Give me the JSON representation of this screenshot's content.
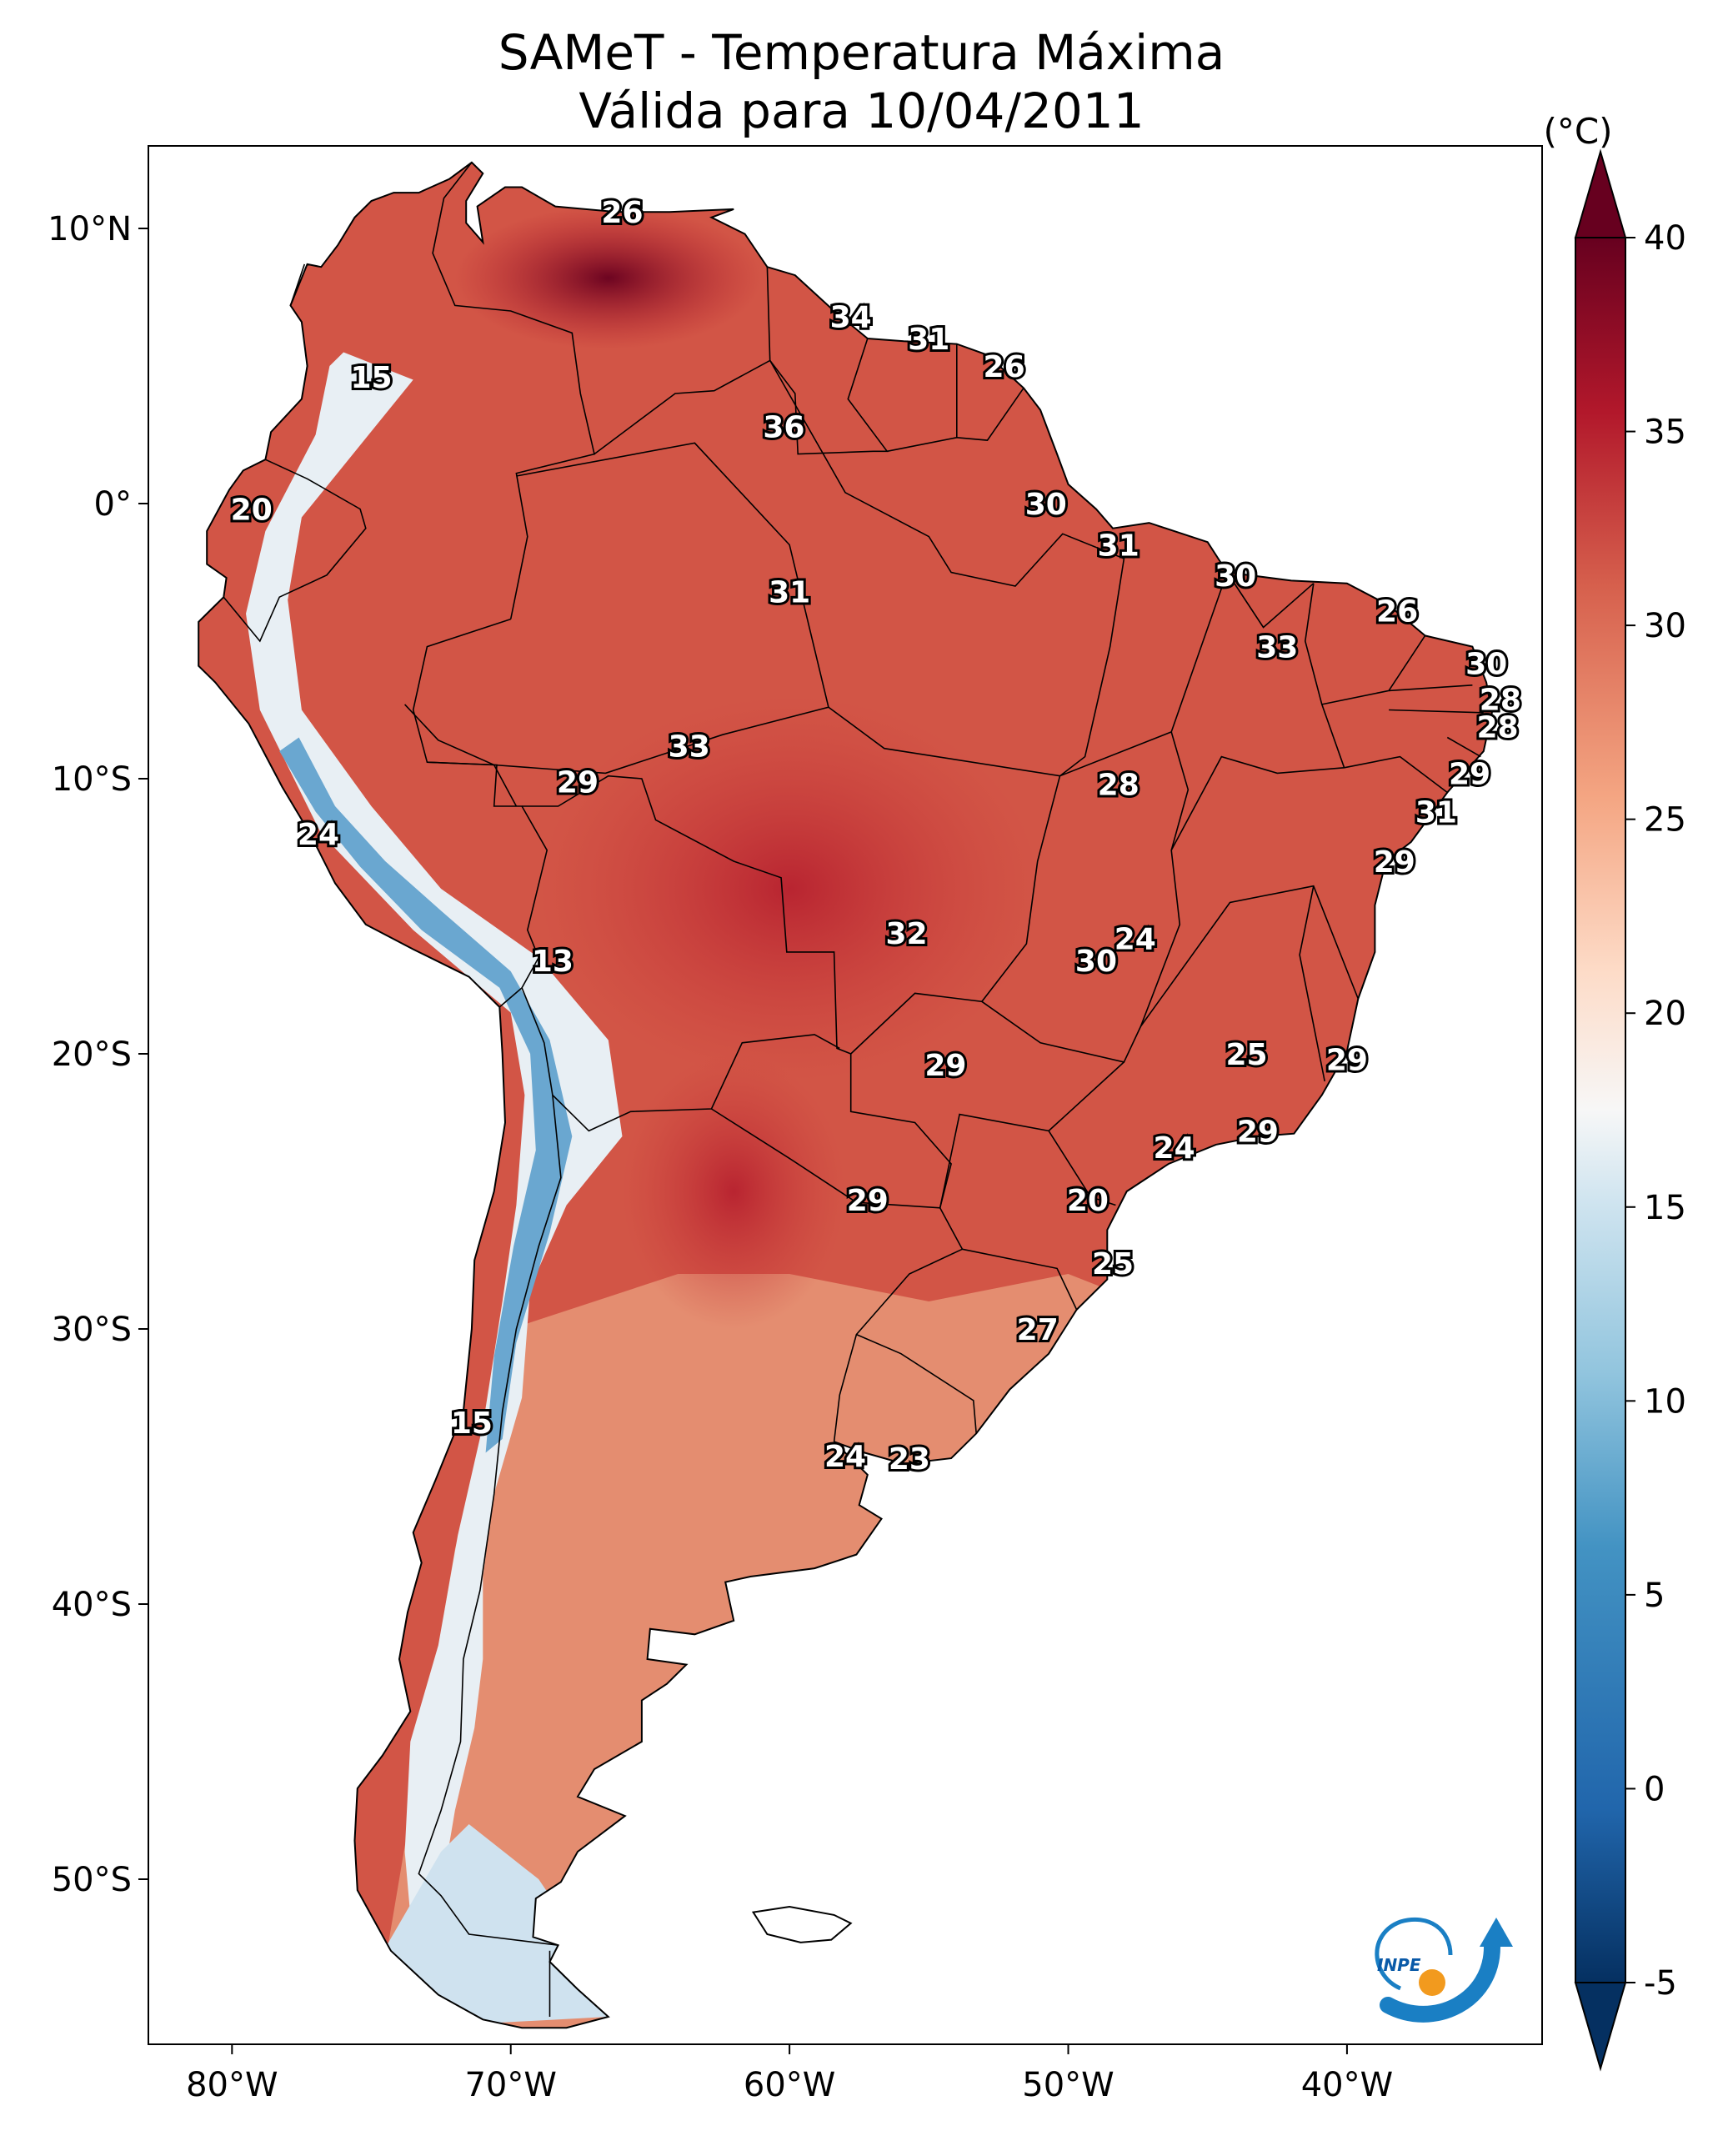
{
  "title": {
    "line1": "SAMeT - Temperatura Máxima",
    "line2": "Válida para 10/04/2011"
  },
  "axes": {
    "lat_ticks": [
      {
        "label": "10°N",
        "lat": 10
      },
      {
        "label": "0°",
        "lat": 0
      },
      {
        "label": "10°S",
        "lat": -10
      },
      {
        "label": "20°S",
        "lat": -20
      },
      {
        "label": "30°S",
        "lat": -30
      },
      {
        "label": "40°S",
        "lat": -40
      },
      {
        "label": "50°S",
        "lat": -50
      }
    ],
    "lon_ticks": [
      {
        "label": "80°W",
        "lon": -80
      },
      {
        "label": "70°W",
        "lon": -70
      },
      {
        "label": "60°W",
        "lon": -60
      },
      {
        "label": "50°W",
        "lon": -50
      },
      {
        "label": "40°W",
        "lon": -40
      }
    ],
    "lon_range": [
      -83,
      -33
    ],
    "lat_range": [
      -56,
      13
    ]
  },
  "colorbar": {
    "unit": "(°C)",
    "min": -5,
    "max": 40,
    "ticks": [
      "-5",
      "0",
      "5",
      "10",
      "15",
      "20",
      "25",
      "30",
      "35",
      "40"
    ],
    "colors": [
      "#053061",
      "#2166ac",
      "#4393c3",
      "#92c5de",
      "#d1e5f0",
      "#f7f7f7",
      "#fddbc7",
      "#f4a582",
      "#d6604d",
      "#b2182b",
      "#67001f"
    ]
  },
  "labels": [
    {
      "text": "26",
      "lon": -66.0,
      "lat": 10.6
    },
    {
      "text": "34",
      "lon": -57.8,
      "lat": 6.8
    },
    {
      "text": "31",
      "lon": -55.0,
      "lat": 6.0
    },
    {
      "text": "26",
      "lon": -52.3,
      "lat": 5.0
    },
    {
      "text": "15",
      "lon": -75.0,
      "lat": 4.6
    },
    {
      "text": "36",
      "lon": -60.2,
      "lat": 2.8
    },
    {
      "text": "20",
      "lon": -79.3,
      "lat": -0.2
    },
    {
      "text": "30",
      "lon": -50.8,
      "lat": 0.0
    },
    {
      "text": "31",
      "lon": -48.2,
      "lat": -1.5
    },
    {
      "text": "31",
      "lon": -60.0,
      "lat": -3.2
    },
    {
      "text": "30",
      "lon": -44.0,
      "lat": -2.6
    },
    {
      "text": "26",
      "lon": -38.2,
      "lat": -3.9
    },
    {
      "text": "33",
      "lon": -42.5,
      "lat": -5.2
    },
    {
      "text": "30",
      "lon": -35.0,
      "lat": -5.8
    },
    {
      "text": "28",
      "lon": -34.5,
      "lat": -7.1
    },
    {
      "text": "28",
      "lon": -34.6,
      "lat": -8.1
    },
    {
      "text": "33",
      "lon": -63.6,
      "lat": -8.8
    },
    {
      "text": "29",
      "lon": -67.6,
      "lat": -10.1
    },
    {
      "text": "28",
      "lon": -48.2,
      "lat": -10.2
    },
    {
      "text": "29",
      "lon": -35.6,
      "lat": -9.8
    },
    {
      "text": "31",
      "lon": -36.8,
      "lat": -11.2
    },
    {
      "text": "24",
      "lon": -76.9,
      "lat": -12.0
    },
    {
      "text": "29",
      "lon": -38.3,
      "lat": -13.0
    },
    {
      "text": "32",
      "lon": -55.8,
      "lat": -15.6
    },
    {
      "text": "24",
      "lon": -47.6,
      "lat": -15.8
    },
    {
      "text": "30",
      "lon": -49.0,
      "lat": -16.6
    },
    {
      "text": "13",
      "lon": -68.5,
      "lat": -16.6
    },
    {
      "text": "25",
      "lon": -43.6,
      "lat": -20.0
    },
    {
      "text": "29",
      "lon": -40.0,
      "lat": -20.2
    },
    {
      "text": "29",
      "lon": -54.4,
      "lat": -20.4
    },
    {
      "text": "29",
      "lon": -43.2,
      "lat": -22.8
    },
    {
      "text": "24",
      "lon": -46.2,
      "lat": -23.4
    },
    {
      "text": "29",
      "lon": -57.2,
      "lat": -25.3
    },
    {
      "text": "20",
      "lon": -49.3,
      "lat": -25.3
    },
    {
      "text": "25",
      "lon": -48.4,
      "lat": -27.6
    },
    {
      "text": "27",
      "lon": -51.1,
      "lat": -30.0
    },
    {
      "text": "15",
      "lon": -71.4,
      "lat": -33.4
    },
    {
      "text": "24",
      "lon": -58.0,
      "lat": -34.6
    },
    {
      "text": "23",
      "lon": -55.7,
      "lat": -34.7
    }
  ],
  "logo": {
    "text": "INPE"
  }
}
